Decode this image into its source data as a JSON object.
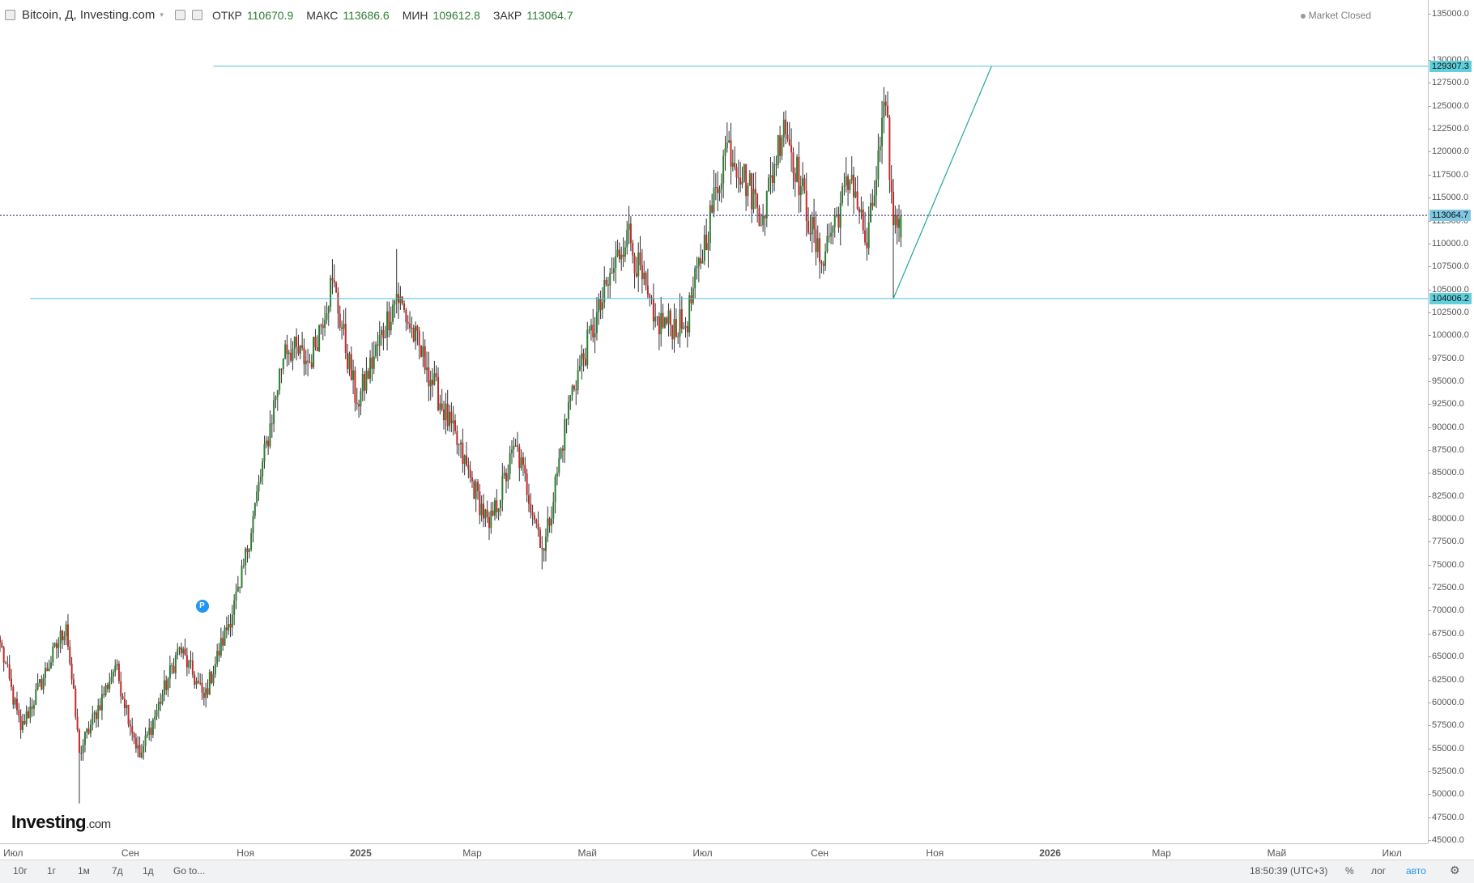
{
  "header": {
    "symbol": "Bitcoin, Д, Investing.com",
    "open_label": "ОТКР",
    "open_value": "110670.9",
    "high_label": "МАКС",
    "high_value": "113686.6",
    "low_label": "МИН",
    "low_value": "109612.8",
    "close_label": "ЗАКР",
    "close_value": "113064.7"
  },
  "market_status": "Market Closed",
  "logo": {
    "main": "Investing",
    "suffix": ".com"
  },
  "marker": {
    "label": "P",
    "date": "2024-10-09",
    "price": 70500
  },
  "colors": {
    "up": "#2e7d32",
    "down": "#c62828",
    "wick": "#333333",
    "hline": "#4fc3d4",
    "close_line": "#1a237e",
    "trendline": "#26a69a"
  },
  "price_axis": {
    "ticks": [
      "135000.0",
      "130000.0",
      "127500.0",
      "125000.0",
      "122500.0",
      "120000.0",
      "117500.0",
      "115000.0",
      "112500.0",
      "110000.0",
      "107500.0",
      "105000.0",
      "102500.0",
      "100000.0",
      "97500.0",
      "95000.0",
      "92500.0",
      "90000.0",
      "87500.0",
      "85000.0",
      "82500.0",
      "80000.0",
      "77500.0",
      "75000.0",
      "72500.0",
      "70000.0",
      "67500.0",
      "65000.0",
      "62500.0",
      "60000.0",
      "57500.0",
      "55000.0",
      "52500.0",
      "50000.0",
      "47500.0",
      "45000.0"
    ],
    "flags": [
      {
        "label": "129307.3",
        "value": 129307.3
      },
      {
        "label": "113064.7",
        "value": 113064.7
      },
      {
        "label": "104006.2",
        "value": 104006.2
      }
    ]
  },
  "time_axis": {
    "labels": [
      {
        "text": "Июл",
        "date": "2024-07-01"
      },
      {
        "text": "Сен",
        "date": "2024-09-01"
      },
      {
        "text": "Ноя",
        "date": "2024-11-01"
      },
      {
        "text": "2025",
        "date": "2025-01-01"
      },
      {
        "text": "Мар",
        "date": "2025-03-01"
      },
      {
        "text": "Май",
        "date": "2025-05-01"
      },
      {
        "text": "Июл",
        "date": "2025-07-01"
      },
      {
        "text": "Сен",
        "date": "2025-09-01"
      },
      {
        "text": "Ноя",
        "date": "2025-11-01"
      },
      {
        "text": "2026",
        "date": "2026-01-01"
      },
      {
        "text": "Мар",
        "date": "2026-03-01"
      },
      {
        "text": "Май",
        "date": "2026-05-01"
      },
      {
        "text": "Июл",
        "date": "2026-07-01"
      }
    ]
  },
  "bottom_bar": {
    "ranges": [
      "10г",
      "1г",
      "1м",
      "7д",
      "1д"
    ],
    "goto": "Go to...",
    "clock": "18:50:39 (UTC+3)",
    "percent": "%",
    "log": "лог",
    "auto": "авто"
  },
  "chart_data": {
    "type": "candlestick",
    "title": "Bitcoin, Д, Investing.com",
    "interval": "daily",
    "x_range": [
      "2024-06-24",
      "2026-07-20"
    ],
    "ylim": [
      45000,
      136000
    ],
    "grid": false,
    "anchors": [
      {
        "date": "2024-06-24",
        "close": 66500
      },
      {
        "date": "2024-07-05",
        "close": 57000
      },
      {
        "date": "2024-07-29",
        "close": 68500
      },
      {
        "date": "2024-08-05",
        "close": 54500
      },
      {
        "date": "2024-08-24",
        "close": 64000
      },
      {
        "date": "2024-09-06",
        "close": 54000
      },
      {
        "date": "2024-09-27",
        "close": 66000
      },
      {
        "date": "2024-10-10",
        "close": 60500
      },
      {
        "date": "2024-10-29",
        "close": 72500
      },
      {
        "date": "2024-11-22",
        "close": 99000
      },
      {
        "date": "2024-12-05",
        "close": 97000
      },
      {
        "date": "2024-12-17",
        "close": 106000
      },
      {
        "date": "2024-12-30",
        "close": 92500
      },
      {
        "date": "2025-01-20",
        "close": 104500
      },
      {
        "date": "2025-02-05",
        "close": 96500
      },
      {
        "date": "2025-02-28",
        "close": 84500
      },
      {
        "date": "2025-03-10",
        "close": 79000
      },
      {
        "date": "2025-03-24",
        "close": 88000
      },
      {
        "date": "2025-04-08",
        "close": 76500
      },
      {
        "date": "2025-04-22",
        "close": 93500
      },
      {
        "date": "2025-05-22",
        "close": 111500
      },
      {
        "date": "2025-06-05",
        "close": 101500
      },
      {
        "date": "2025-06-22",
        "close": 101000
      },
      {
        "date": "2025-07-14",
        "close": 121000
      },
      {
        "date": "2025-08-02",
        "close": 113000
      },
      {
        "date": "2025-08-13",
        "close": 123500
      },
      {
        "date": "2025-09-01",
        "close": 108000
      },
      {
        "date": "2025-09-18",
        "close": 117500
      },
      {
        "date": "2025-09-26",
        "close": 109500
      },
      {
        "date": "2025-10-06",
        "close": 125000
      },
      {
        "date": "2025-10-10",
        "close": 112000
      },
      {
        "date": "2025-10-14",
        "close": 113064.7
      }
    ],
    "extremes": [
      {
        "date": "2024-08-05",
        "low": 49000
      },
      {
        "date": "2024-11-22",
        "high": 99500
      },
      {
        "date": "2024-12-17",
        "high": 108300
      },
      {
        "date": "2025-01-20",
        "high": 109400
      },
      {
        "date": "2025-04-07",
        "low": 74500
      },
      {
        "date": "2025-07-14",
        "high": 123200
      },
      {
        "date": "2025-08-14",
        "high": 124500
      },
      {
        "date": "2025-10-06",
        "high": 126200
      },
      {
        "date": "2025-10-10",
        "low": 104000
      }
    ],
    "last_candle": {
      "date": "2025-10-14",
      "open": 110670.9,
      "high": 113686.6,
      "low": 109612.8,
      "close": 113064.7
    },
    "hlines": [
      {
        "value": 129307.3,
        "from": "2024-10-15"
      },
      {
        "value": 113064.7,
        "from": "2024-06-24",
        "style": "dotted"
      },
      {
        "value": 104006.2,
        "from": "2024-07-10"
      }
    ],
    "trendline": {
      "from": {
        "date": "2025-10-10",
        "value": 104006.2
      },
      "to": {
        "date": "2025-12-01",
        "value": 129307.3
      }
    }
  }
}
